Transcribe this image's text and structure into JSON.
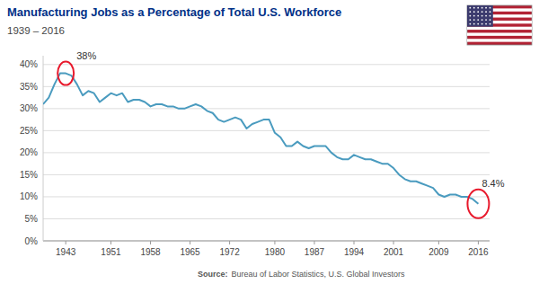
{
  "chart_data": {
    "type": "line",
    "title": "Manufacturing Jobs as a Percentage of Total U.S. Workforce",
    "subtitle": "1939 – 2016",
    "source_label": "Source:",
    "source": "Bureau of Labor Statistics, U.S. Global Investors",
    "x": [
      1939,
      1940,
      1941,
      1942,
      1943,
      1944,
      1945,
      1946,
      1947,
      1948,
      1949,
      1950,
      1951,
      1952,
      1953,
      1954,
      1955,
      1956,
      1957,
      1958,
      1959,
      1960,
      1961,
      1962,
      1963,
      1964,
      1965,
      1966,
      1967,
      1968,
      1969,
      1970,
      1971,
      1972,
      1973,
      1974,
      1975,
      1976,
      1977,
      1978,
      1979,
      1980,
      1981,
      1982,
      1983,
      1984,
      1985,
      1986,
      1987,
      1988,
      1989,
      1990,
      1991,
      1992,
      1993,
      1994,
      1995,
      1996,
      1997,
      1998,
      1999,
      2000,
      2001,
      2002,
      2003,
      2004,
      2005,
      2006,
      2007,
      2008,
      2009,
      2010,
      2011,
      2012,
      2013,
      2014,
      2015,
      2016
    ],
    "values": [
      31.0,
      32.5,
      35.5,
      38.0,
      38.0,
      37.5,
      35.5,
      33.0,
      34.0,
      33.5,
      31.5,
      32.5,
      33.5,
      33.0,
      33.5,
      31.5,
      32.0,
      32.0,
      31.5,
      30.5,
      31.0,
      31.0,
      30.5,
      30.5,
      30.0,
      30.0,
      30.5,
      31.0,
      30.5,
      29.5,
      29.0,
      27.5,
      27.0,
      27.5,
      28.0,
      27.5,
      25.5,
      26.5,
      27.0,
      27.5,
      27.5,
      24.5,
      23.5,
      21.5,
      21.5,
      22.5,
      21.5,
      21.0,
      21.5,
      21.5,
      21.5,
      20.0,
      19.0,
      18.5,
      18.5,
      19.5,
      19.0,
      18.5,
      18.5,
      18.0,
      17.5,
      17.5,
      16.5,
      15.0,
      14.0,
      13.5,
      13.5,
      13.0,
      12.5,
      12.0,
      10.5,
      10.0,
      10.5,
      10.5,
      10.0,
      10.0,
      9.5,
      8.4
    ],
    "color": "#4a9bbf",
    "xlim": [
      1939,
      2018
    ],
    "ylim": [
      0,
      42
    ],
    "xticks": [
      1943,
      1951,
      1958,
      1965,
      1972,
      1980,
      1987,
      1994,
      2001,
      2009,
      2016
    ],
    "yticks": [
      {
        "value": 0,
        "label": "0%"
      },
      {
        "value": 5,
        "label": "5%"
      },
      {
        "value": 10,
        "label": "10%"
      },
      {
        "value": 15,
        "label": "15%"
      },
      {
        "value": 20,
        "label": "20%"
      },
      {
        "value": 25,
        "label": "25%"
      },
      {
        "value": 30,
        "label": "30%"
      },
      {
        "value": 35,
        "label": "35%"
      },
      {
        "value": 40,
        "label": "40%"
      }
    ],
    "grid": true,
    "annotations": [
      {
        "text": "38%",
        "x": 1943,
        "y": 38.0,
        "color": "#e8192c"
      },
      {
        "text": "8.4%",
        "x": 2016,
        "y": 8.4,
        "color": "#e8192c"
      }
    ]
  }
}
